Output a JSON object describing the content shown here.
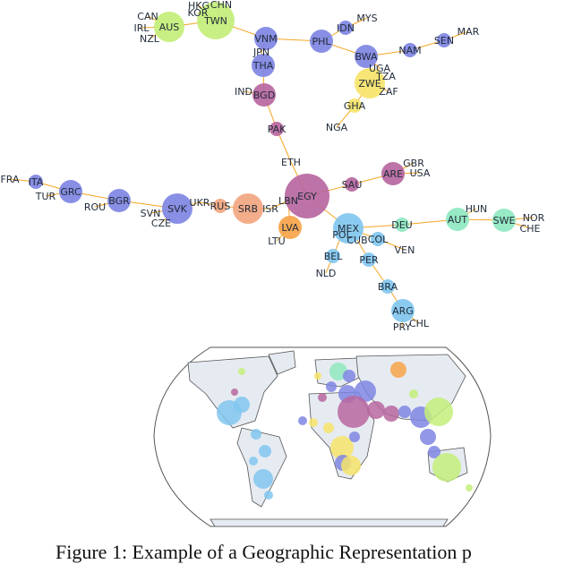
{
  "colors": {
    "edge": "#f5a623",
    "green": "#c3ee7a",
    "indigo": "#7f86e3",
    "magenta": "#b7679f",
    "yellow": "#f6e46a",
    "peach": "#f3a680",
    "orange": "#f7a44a",
    "lightblue": "#81c7f0",
    "mint": "#8ee8c0",
    "map_land": "#e6ebf2",
    "map_outline": "#555555"
  },
  "graph": {
    "nodes": [
      {
        "id": "CAN",
        "label": "CAN",
        "color": "green",
        "size": 0
      },
      {
        "id": "IRL",
        "label": "IRL",
        "color": "green",
        "size": 0
      },
      {
        "id": "NZL",
        "label": "NZL",
        "color": "green",
        "size": 0
      },
      {
        "id": "AUS",
        "label": "AUS",
        "color": "green",
        "size": 3
      },
      {
        "id": "HKG",
        "label": "HKG",
        "color": "green",
        "size": 0
      },
      {
        "id": "CHN",
        "label": "CHN",
        "color": "green",
        "size": 0
      },
      {
        "id": "KOR",
        "label": "KOR",
        "color": "green",
        "size": 0
      },
      {
        "id": "TWN",
        "label": "TWN",
        "color": "green",
        "size": 4
      },
      {
        "id": "VNM",
        "label": "VNM",
        "color": "indigo",
        "size": 2
      },
      {
        "id": "JPN",
        "label": "JPN",
        "color": "indigo",
        "size": 0
      },
      {
        "id": "THA",
        "label": "THA",
        "color": "indigo",
        "size": 2
      },
      {
        "id": "PHL",
        "label": "PHL",
        "color": "indigo",
        "size": 2
      },
      {
        "id": "IDN",
        "label": "IDN",
        "color": "indigo",
        "size": 1
      },
      {
        "id": "MYS",
        "label": "MYS",
        "color": "indigo",
        "size": 0
      },
      {
        "id": "BWA",
        "label": "BWA",
        "color": "indigo",
        "size": 2
      },
      {
        "id": "NAM",
        "label": "NAM",
        "color": "indigo",
        "size": 1
      },
      {
        "id": "SEN",
        "label": "SEN",
        "color": "indigo",
        "size": 1
      },
      {
        "id": "MAR",
        "label": "MAR",
        "color": "indigo",
        "size": 0
      },
      {
        "id": "UGA",
        "label": "UGA",
        "color": "yellow",
        "size": 0
      },
      {
        "id": "TZA",
        "label": "TZA",
        "color": "yellow",
        "size": 0
      },
      {
        "id": "ZWE",
        "label": "ZWE",
        "color": "yellow",
        "size": 3
      },
      {
        "id": "ZAF",
        "label": "ZAF",
        "color": "yellow",
        "size": 0
      },
      {
        "id": "GHA",
        "label": "GHA",
        "color": "yellow",
        "size": 1
      },
      {
        "id": "NGA",
        "label": "NGA",
        "color": "yellow",
        "size": 0
      },
      {
        "id": "IND",
        "label": "IND",
        "color": "magenta",
        "size": 0
      },
      {
        "id": "BGD",
        "label": "BGD",
        "color": "magenta",
        "size": 2
      },
      {
        "id": "PAK",
        "label": "PAK",
        "color": "magenta",
        "size": 1
      },
      {
        "id": "ETH",
        "label": "ETH",
        "color": "magenta",
        "size": 0
      },
      {
        "id": "EGY",
        "label": "EGY",
        "color": "magenta",
        "size": 5
      },
      {
        "id": "LBN",
        "label": "LBN",
        "color": "magenta",
        "size": 0
      },
      {
        "id": "SAU",
        "label": "SAU",
        "color": "magenta",
        "size": 1
      },
      {
        "id": "ARE",
        "label": "ARE",
        "color": "magenta",
        "size": 2
      },
      {
        "id": "GBR",
        "label": "GBR",
        "color": "magenta",
        "size": 0
      },
      {
        "id": "USA",
        "label": "USA",
        "color": "magenta",
        "size": 0
      },
      {
        "id": "FRA",
        "label": "FRA",
        "color": "indigo",
        "size": 0
      },
      {
        "id": "ITA",
        "label": "ITA",
        "color": "indigo",
        "size": 1
      },
      {
        "id": "TUR",
        "label": "TUR",
        "color": "indigo",
        "size": 0
      },
      {
        "id": "GRC",
        "label": "GRC",
        "color": "indigo",
        "size": 2
      },
      {
        "id": "ROU",
        "label": "ROU",
        "color": "indigo",
        "size": 0
      },
      {
        "id": "BGR",
        "label": "BGR",
        "color": "indigo",
        "size": 2
      },
      {
        "id": "SVN",
        "label": "SVN",
        "color": "indigo",
        "size": 0
      },
      {
        "id": "CZE",
        "label": "CZE",
        "color": "indigo",
        "size": 0
      },
      {
        "id": "SVK",
        "label": "SVK",
        "color": "indigo",
        "size": 3
      },
      {
        "id": "UKR",
        "label": "UKR",
        "color": "peach",
        "size": 0
      },
      {
        "id": "RUS",
        "label": "RUS",
        "color": "peach",
        "size": 1
      },
      {
        "id": "SRB",
        "label": "SRB",
        "color": "peach",
        "size": 3
      },
      {
        "id": "ISR",
        "label": "ISR",
        "color": "peach",
        "size": 0
      },
      {
        "id": "LVA",
        "label": "LVA",
        "color": "orange",
        "size": 2
      },
      {
        "id": "LTU",
        "label": "LTU",
        "color": "orange",
        "size": 0
      },
      {
        "id": "MEX",
        "label": "MEX",
        "color": "lightblue",
        "size": 3
      },
      {
        "id": "POL",
        "label": "POL",
        "color": "lightblue",
        "size": 0
      },
      {
        "id": "CUB",
        "label": "CUB",
        "color": "lightblue",
        "size": 0
      },
      {
        "id": "COL",
        "label": "COL",
        "color": "lightblue",
        "size": 1
      },
      {
        "id": "VEN",
        "label": "VEN",
        "color": "lightblue",
        "size": 0
      },
      {
        "id": "BEL",
        "label": "BEL",
        "color": "lightblue",
        "size": 1
      },
      {
        "id": "NLD",
        "label": "NLD",
        "color": "lightblue",
        "size": 0
      },
      {
        "id": "PER",
        "label": "PER",
        "color": "lightblue",
        "size": 1
      },
      {
        "id": "BRA",
        "label": "BRA",
        "color": "lightblue",
        "size": 1
      },
      {
        "id": "ARG",
        "label": "ARG",
        "color": "lightblue",
        "size": 2
      },
      {
        "id": "PRY",
        "label": "PRY",
        "color": "lightblue",
        "size": 0
      },
      {
        "id": "CHL",
        "label": "CHL",
        "color": "lightblue",
        "size": 0
      },
      {
        "id": "DEU",
        "label": "DEU",
        "color": "mint",
        "size": 1
      },
      {
        "id": "AUT",
        "label": "AUT",
        "color": "mint",
        "size": 2
      },
      {
        "id": "HUN",
        "label": "HUN",
        "color": "mint",
        "size": 0
      },
      {
        "id": "SWE",
        "label": "SWE",
        "color": "mint",
        "size": 2
      },
      {
        "id": "NOR",
        "label": "NOR",
        "color": "mint",
        "size": 0
      },
      {
        "id": "CHE",
        "label": "CHE",
        "color": "mint",
        "size": 0
      }
    ],
    "edges": [
      [
        "CAN",
        "AUS"
      ],
      [
        "IRL",
        "AUS"
      ],
      [
        "NZL",
        "AUS"
      ],
      [
        "AUS",
        "TWN"
      ],
      [
        "HKG",
        "TWN"
      ],
      [
        "CHN",
        "TWN"
      ],
      [
        "KOR",
        "TWN"
      ],
      [
        "TWN",
        "VNM"
      ],
      [
        "VNM",
        "PHL"
      ],
      [
        "VNM",
        "JPN"
      ],
      [
        "JPN",
        "THA"
      ],
      [
        "PHL",
        "IDN"
      ],
      [
        "IDN",
        "MYS"
      ],
      [
        "PHL",
        "BWA"
      ],
      [
        "BWA",
        "NAM"
      ],
      [
        "NAM",
        "SEN"
      ],
      [
        "SEN",
        "MAR"
      ],
      [
        "BWA",
        "UGA"
      ],
      [
        "UGA",
        "ZWE"
      ],
      [
        "TZA",
        "ZWE"
      ],
      [
        "ZWE",
        "ZAF"
      ],
      [
        "ZWE",
        "GHA"
      ],
      [
        "GHA",
        "NGA"
      ],
      [
        "THA",
        "BGD"
      ],
      [
        "IND",
        "BGD"
      ],
      [
        "BGD",
        "PAK"
      ],
      [
        "PAK",
        "ETH"
      ],
      [
        "ETH",
        "EGY"
      ],
      [
        "EGY",
        "SAU"
      ],
      [
        "SAU",
        "ARE"
      ],
      [
        "ARE",
        "GBR"
      ],
      [
        "ARE",
        "USA"
      ],
      [
        "EGY",
        "LBN"
      ],
      [
        "LBN",
        "ISR"
      ],
      [
        "ISR",
        "SRB"
      ],
      [
        "SRB",
        "RUS"
      ],
      [
        "RUS",
        "UKR"
      ],
      [
        "UKR",
        "SVK"
      ],
      [
        "SVK",
        "SVN"
      ],
      [
        "SVK",
        "CZE"
      ],
      [
        "SVK",
        "BGR"
      ],
      [
        "BGR",
        "ROU"
      ],
      [
        "BGR",
        "GRC"
      ],
      [
        "GRC",
        "TUR"
      ],
      [
        "GRC",
        "ITA"
      ],
      [
        "ITA",
        "FRA"
      ],
      [
        "LBN",
        "LVA"
      ],
      [
        "LVA",
        "LTU"
      ],
      [
        "EGY",
        "MEX"
      ],
      [
        "MEX",
        "POL"
      ],
      [
        "MEX",
        "CUB"
      ],
      [
        "MEX",
        "COL"
      ],
      [
        "COL",
        "VEN"
      ],
      [
        "MEX",
        "DEU"
      ],
      [
        "DEU",
        "AUT"
      ],
      [
        "AUT",
        "HUN"
      ],
      [
        "AUT",
        "SWE"
      ],
      [
        "SWE",
        "NOR"
      ],
      [
        "SWE",
        "CHE"
      ],
      [
        "POL",
        "BEL"
      ],
      [
        "BEL",
        "NLD"
      ],
      [
        "CUB",
        "PER"
      ],
      [
        "PER",
        "BRA"
      ],
      [
        "BRA",
        "ARG"
      ],
      [
        "ARG",
        "PRY"
      ],
      [
        "ARG",
        "CHL"
      ]
    ]
  },
  "caption": "Figure 1: Example of a Geographic Representation p"
}
